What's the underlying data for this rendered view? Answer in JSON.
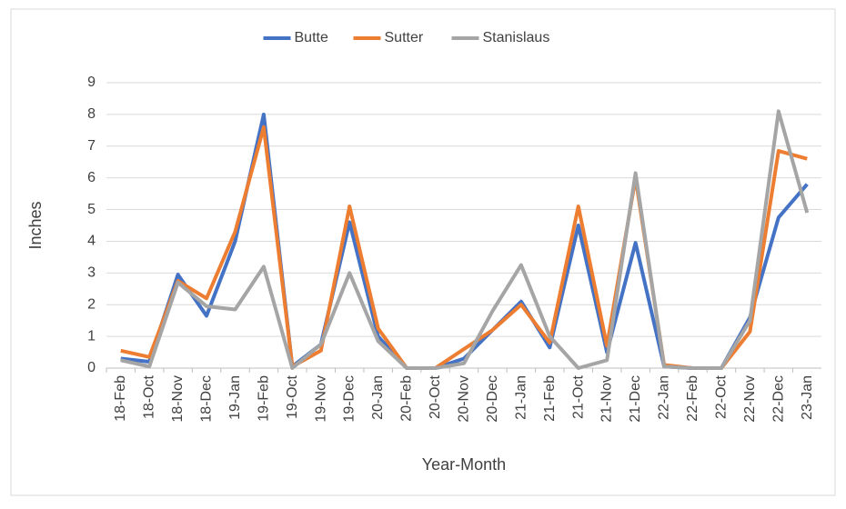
{
  "chart_data": {
    "type": "line",
    "x_label": "Year-Month",
    "y_label": "Inches",
    "categories": [
      "18-Feb",
      "18-Oct",
      "18-Nov",
      "18-Dec",
      "19-Jan",
      "19-Feb",
      "19-Oct",
      "19-Nov",
      "19-Dec",
      "20-Jan",
      "20-Feb",
      "20-Oct",
      "20-Nov",
      "20-Dec",
      "21-Jan",
      "21-Feb",
      "21-Oct",
      "21-Nov",
      "21-Dec",
      "22-Jan",
      "22-Feb",
      "22-Oct",
      "22-Nov",
      "22-Dec",
      "23-Jan"
    ],
    "series": [
      {
        "name": "Butte",
        "color": "#4472c4",
        "values": [
          0.3,
          0.2,
          2.95,
          1.65,
          4.0,
          8.0,
          0.05,
          0.75,
          4.6,
          1.0,
          0,
          0,
          0.3,
          1.2,
          2.1,
          0.65,
          4.5,
          0.5,
          3.95,
          0.05,
          0,
          0,
          1.6,
          4.75,
          5.8
        ]
      },
      {
        "name": "Sutter",
        "color": "#ed7d31",
        "values": [
          0.55,
          0.35,
          2.75,
          2.2,
          4.3,
          7.6,
          0.05,
          0.55,
          5.1,
          1.25,
          0,
          0,
          0.6,
          1.2,
          2.0,
          0.8,
          5.1,
          0.7,
          6.0,
          0.1,
          0,
          0,
          1.15,
          6.85,
          6.6
        ]
      },
      {
        "name": "Stanislaus",
        "color": "#a5a5a5",
        "values": [
          0.25,
          0.05,
          2.7,
          1.95,
          1.85,
          3.2,
          0.0,
          0.75,
          3.0,
          0.85,
          0,
          0,
          0.15,
          1.8,
          3.25,
          1.0,
          0.0,
          0.25,
          6.15,
          0.05,
          0,
          0,
          1.5,
          8.1,
          4.9
        ]
      }
    ],
    "ylim": [
      0,
      9
    ],
    "yticks": [
      0,
      1,
      2,
      3,
      4,
      5,
      6,
      7,
      8,
      9
    ],
    "grid": true,
    "legend": "top"
  }
}
